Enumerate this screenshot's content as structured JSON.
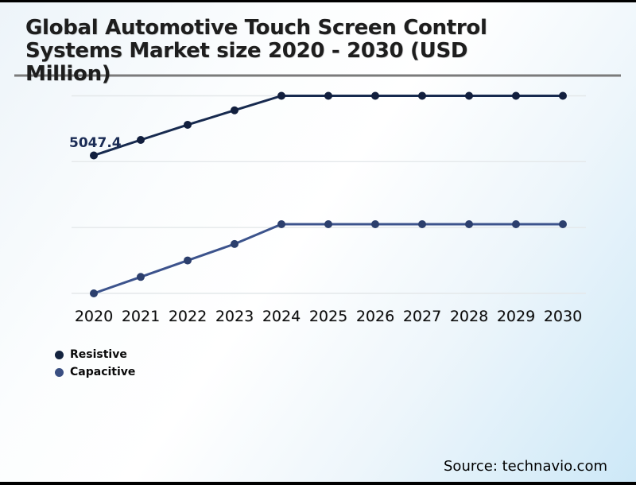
{
  "title": {
    "full": "Global Automotive Touch Screen Control Systems Market size 2020 - 2030 (USD Million)",
    "lines": [
      "Global Automotive Touch Screen Control",
      "Systems Market size 2020 - 2030 (USD",
      "Million)"
    ]
  },
  "footer": {
    "source": "Source: technavio.com"
  },
  "colors": {
    "resistive_line": "#172a4f",
    "resistive_marker": "#121f3e",
    "capacitive_line": "#3c538c",
    "capacitive_marker": "#2c3f6d",
    "gridline": "#e4e8ea",
    "title_underline": "#7b7b7b",
    "border": "#000000",
    "background_corner": "#cde8f7"
  },
  "legend": {
    "items": [
      {
        "label": "Resistive",
        "color": "#14233f"
      },
      {
        "label": "Capacitive",
        "color": "#3a4f82"
      }
    ]
  },
  "chart_data": {
    "type": "line",
    "title": "Global Automotive Touch Screen Control Systems Market size 2020 - 2030 (USD Million)",
    "units": "USD Million",
    "categories": [
      "2020",
      "2021",
      "2022",
      "2023",
      "2024",
      "2025",
      "2026",
      "2027",
      "2028",
      "2029",
      "2030"
    ],
    "series": [
      {
        "name": "Resistive",
        "color": "#172a4f",
        "marker_color": "#121f3e",
        "values": [
          5047.4,
          5165,
          5280,
          5390,
          5500,
          5500,
          5500,
          5500,
          5500,
          5500,
          5500
        ],
        "data_labels": {
          "0": "5047.4"
        }
      },
      {
        "name": "Capacitive",
        "color": "#3c538c",
        "marker_color": "#2c3f6d",
        "values": [
          4000,
          4125,
          4250,
          4375,
          4525,
          4525,
          4525,
          4525,
          4525,
          4525,
          4525
        ]
      }
    ],
    "xlabel": "",
    "ylabel": "",
    "ylim": [
      3900,
      5750
    ],
    "gridlines": [
      4000,
      4500,
      5000,
      5500
    ],
    "grid": "horizontal-only",
    "y_axis_labels_visible": false,
    "legend_position": "bottom-left",
    "first_point_label": "5047.4"
  }
}
